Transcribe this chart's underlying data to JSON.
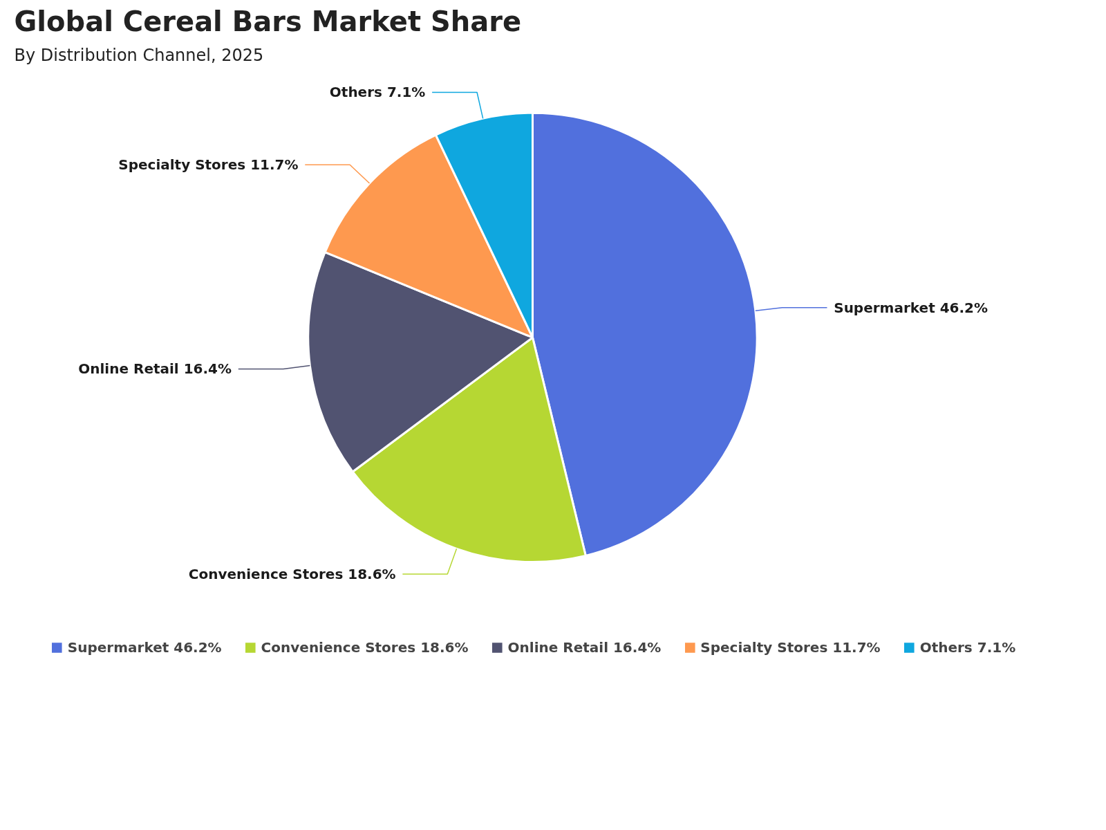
{
  "chart_data": {
    "type": "pie",
    "title": "Global Cereal Bars Market Share",
    "subtitle": "By Distribution Channel, 2025",
    "categories": [
      "Supermarket",
      "Convenience Stores",
      "Online Retail",
      "Specialty Stores",
      "Others"
    ],
    "values": [
      46.2,
      18.6,
      16.4,
      11.7,
      7.1
    ],
    "value_labels": [
      "46.2%",
      "18.6%",
      "16.4%",
      "11.7%",
      "7.1%"
    ],
    "colors": [
      "#5170dd",
      "#b6d733",
      "#515371",
      "#fe994f",
      "#0fa7df"
    ],
    "legend": "bottom"
  }
}
